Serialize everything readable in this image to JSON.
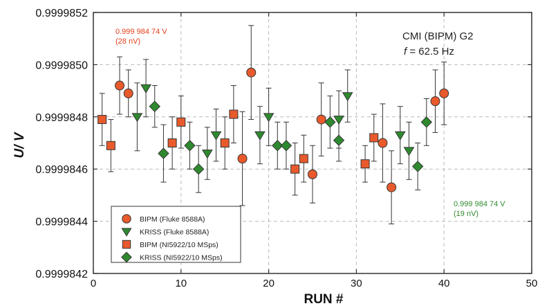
{
  "chart_data": {
    "type": "scatter",
    "xlabel": "RUN #",
    "ylabel": "U/ V",
    "xlim": [
      0,
      50
    ],
    "ylim": [
      0.9999842,
      0.9999852
    ],
    "x_ticks": [
      "0",
      "10",
      "20",
      "30",
      "40",
      "50"
    ],
    "y_ticks": [
      "0.9999842",
      "0.9999844",
      "0.9999846",
      "0.9999848",
      "0.9999850",
      "0.9999852"
    ],
    "grid": true,
    "legend_position": "bottom-left",
    "colors": {
      "red": "#e85a2c",
      "green": "#2f8a2f",
      "axis": "#333333",
      "grid": "#bbbbbb",
      "red_text": "#e2401a",
      "green_text": "#2f8a2f"
    },
    "annotations": {
      "red_value": "0.999 984 74 V",
      "red_unc": "(28 nV)",
      "green_value": "0.999 984 74 V",
      "green_unc": "(19 nV)",
      "cmi_line1": "CMI (BIPM) G2",
      "cmi_f": "f",
      "cmi_rest": " = 62.5 Hz"
    },
    "series": [
      {
        "name": "BIPM (Fluke 8588A)",
        "marker": "circle",
        "color": "#e85a2c",
        "points": [
          {
            "x": 3,
            "y": 0.99998492,
            "err": 1.1e-07
          },
          {
            "x": 4,
            "y": 0.99998489,
            "err": 9e-08
          },
          {
            "x": 17,
            "y": 0.99998464,
            "err": 1.8e-07
          },
          {
            "x": 18,
            "y": 0.99998497,
            "err": 1.8e-07
          },
          {
            "x": 25,
            "y": 0.99998458,
            "err": 1.1e-07
          },
          {
            "x": 26,
            "y": 0.99998479,
            "err": 1.4e-07
          },
          {
            "x": 33,
            "y": 0.9999847,
            "err": 1.5e-07
          },
          {
            "x": 34,
            "y": 0.99998453,
            "err": 1.4e-07
          },
          {
            "x": 39,
            "y": 0.99998486,
            "err": 1.2e-07
          },
          {
            "x": 40,
            "y": 0.99998489,
            "err": 1.2e-07
          }
        ]
      },
      {
        "name": "KRISS (Fluke 8588A)",
        "marker": "triangle-down",
        "color": "#2f8a2f",
        "points": [
          {
            "x": 5,
            "y": 0.9999848,
            "err": 1.3e-07
          },
          {
            "x": 6,
            "y": 0.99998491,
            "err": 1.1e-07
          },
          {
            "x": 13,
            "y": 0.99998466,
            "err": 1e-07
          },
          {
            "x": 14,
            "y": 0.99998473,
            "err": 1e-07
          },
          {
            "x": 19,
            "y": 0.99998473,
            "err": 1.1e-07
          },
          {
            "x": 20,
            "y": 0.9999848,
            "err": 1.1e-07
          },
          {
            "x": 28,
            "y": 0.99998479,
            "err": 1.1e-07
          },
          {
            "x": 29,
            "y": 0.99998488,
            "err": 1e-07
          },
          {
            "x": 35,
            "y": 0.99998473,
            "err": 1.1e-07
          },
          {
            "x": 36,
            "y": 0.99998467,
            "err": 1.1e-07
          }
        ]
      },
      {
        "name": "BIPM (NI5922/10 MSps)",
        "marker": "square",
        "color": "#e85a2c",
        "points": [
          {
            "x": 1,
            "y": 0.99998479,
            "err": 1e-07
          },
          {
            "x": 2,
            "y": 0.99998469,
            "err": 1e-07
          },
          {
            "x": 9,
            "y": 0.9999847,
            "err": 1e-07
          },
          {
            "x": 10,
            "y": 0.99998478,
            "err": 1e-07
          },
          {
            "x": 15,
            "y": 0.9999847,
            "err": 1e-07
          },
          {
            "x": 16,
            "y": 0.99998481,
            "err": 1.1e-07
          },
          {
            "x": 23,
            "y": 0.9999846,
            "err": 1e-07
          },
          {
            "x": 24,
            "y": 0.99998464,
            "err": 9e-08
          },
          {
            "x": 31,
            "y": 0.99998462,
            "err": 7e-08
          },
          {
            "x": 32,
            "y": 0.99998472,
            "err": 9e-08
          }
        ]
      },
      {
        "name": "KRISS (NI5922/10 MSps)",
        "marker": "diamond",
        "color": "#2f8a2f",
        "points": [
          {
            "x": 7,
            "y": 0.99998484,
            "err": 8e-08
          },
          {
            "x": 8,
            "y": 0.99998466,
            "err": 1.1e-07
          },
          {
            "x": 11,
            "y": 0.99998469,
            "err": 9e-08
          },
          {
            "x": 12,
            "y": 0.9999846,
            "err": 9e-08
          },
          {
            "x": 21,
            "y": 0.99998469,
            "err": 9e-08
          },
          {
            "x": 22,
            "y": 0.99998469,
            "err": 9e-08
          },
          {
            "x": 27,
            "y": 0.99998478,
            "err": 1e-07
          },
          {
            "x": 28,
            "y": 0.99998471,
            "err": 8e-08
          },
          {
            "x": 37,
            "y": 0.99998461,
            "err": 9e-08
          },
          {
            "x": 38,
            "y": 0.99998478,
            "err": 9e-08
          }
        ]
      }
    ]
  }
}
